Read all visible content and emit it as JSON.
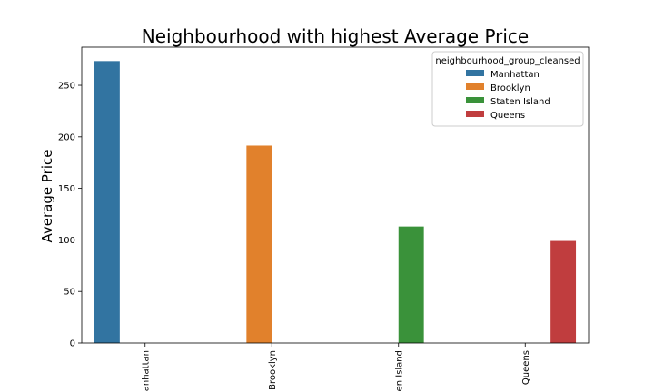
{
  "chart_data": {
    "type": "bar",
    "title": "Neighbourhood with highest Average Price",
    "xlabel": "",
    "ylabel": "Average Price",
    "categories": [
      "Manhattan",
      "Brooklyn",
      "Staten Island",
      "Queens"
    ],
    "category_tick_labels": [
      "anhattan",
      "Brooklyn",
      "en Island",
      "Queens"
    ],
    "ylim": [
      0,
      287
    ],
    "yticks": [
      0,
      50,
      100,
      150,
      200,
      250
    ],
    "grid": false,
    "legend": {
      "title": "neighbourhood_group_cleansed",
      "placement": "top-right"
    },
    "series": [
      {
        "name": "Manhattan",
        "color": "#3274a1",
        "values": [
          273.5,
          null,
          null,
          null
        ]
      },
      {
        "name": "Brooklyn",
        "color": "#e1812c",
        "values": [
          null,
          191.5,
          null,
          null
        ]
      },
      {
        "name": "Staten Island",
        "color": "#3a923a",
        "values": [
          null,
          null,
          113,
          null
        ]
      },
      {
        "name": "Queens",
        "color": "#c03d3e",
        "values": [
          null,
          null,
          null,
          99
        ]
      }
    ]
  }
}
